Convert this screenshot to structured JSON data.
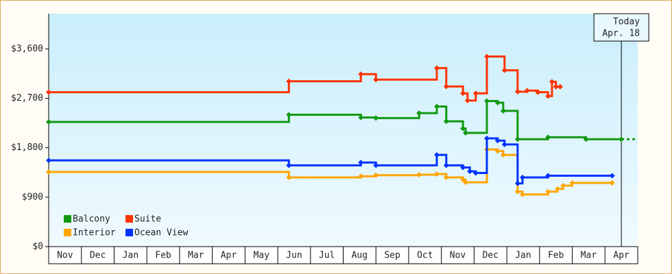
{
  "chart_data": {
    "type": "step-line",
    "categories": [
      "Nov",
      "Dec",
      "Jan",
      "Feb",
      "Mar",
      "Apr",
      "May",
      "Jun",
      "Jul",
      "Aug",
      "Sep",
      "Oct",
      "Nov",
      "Dec",
      "Jan",
      "Feb",
      "Mar",
      "Apr"
    ],
    "xlim": [
      0,
      18
    ],
    "ylim": [
      0,
      4240
    ],
    "yticks": [
      {
        "value": 0,
        "label": "$0"
      },
      {
        "value": 900,
        "label": "$900"
      },
      {
        "value": 1800,
        "label": "$1,800"
      },
      {
        "value": 2700,
        "label": "$2,700"
      },
      {
        "value": 3600,
        "label": "$3,600"
      }
    ],
    "annotation": {
      "x": 17.5,
      "lines": [
        "Today",
        "Apr. 18"
      ]
    },
    "legend": "bottom-left",
    "series": [
      {
        "name": "Balcony",
        "color": "#119911",
        "x": [
          0,
          7.34,
          9.54,
          10.0,
          11.32,
          11.86,
          12.15,
          12.66,
          12.74,
          13.39,
          13.72,
          13.89,
          14.33,
          15.26,
          16.42,
          17.5
        ],
        "values": [
          2270,
          2400,
          2350,
          2340,
          2430,
          2550,
          2280,
          2150,
          2070,
          2650,
          2620,
          2470,
          1955,
          1990,
          1955,
          1955
        ]
      },
      {
        "name": "Suite",
        "color": "#ff3300",
        "x": [
          0,
          7.34,
          9.54,
          10.0,
          11.86,
          12.15,
          12.66,
          12.8,
          13.05,
          13.39,
          13.93,
          14.33,
          14.62,
          14.95,
          15.26,
          15.38,
          15.5,
          15.63
        ],
        "values": [
          2810,
          3010,
          3140,
          3040,
          3250,
          2915,
          2790,
          2660,
          2790,
          3460,
          3210,
          2820,
          2840,
          2810,
          2740,
          3000,
          2910,
          2910
        ]
      },
      {
        "name": "Interior",
        "color": "#ffa500",
        "x": [
          0,
          7.34,
          9.54,
          10.0,
          11.32,
          11.86,
          12.15,
          12.66,
          12.74,
          13.39,
          13.72,
          13.89,
          14.33,
          14.48,
          15.26,
          15.55,
          15.72,
          16.0,
          17.22
        ],
        "values": [
          1360,
          1260,
          1280,
          1300,
          1310,
          1320,
          1260,
          1220,
          1170,
          1770,
          1740,
          1670,
          1000,
          950,
          1000,
          1050,
          1110,
          1160,
          1160
        ]
      },
      {
        "name": "Ocean View",
        "color": "#0033ff",
        "x": [
          0,
          7.34,
          9.54,
          10.0,
          11.86,
          12.15,
          12.66,
          12.87,
          13.05,
          13.39,
          13.72,
          13.93,
          14.33,
          14.48,
          15.26,
          17.22
        ],
        "values": [
          1570,
          1480,
          1530,
          1480,
          1670,
          1480,
          1440,
          1370,
          1340,
          1970,
          1930,
          1860,
          1150,
          1260,
          1290,
          1290
        ]
      }
    ]
  }
}
